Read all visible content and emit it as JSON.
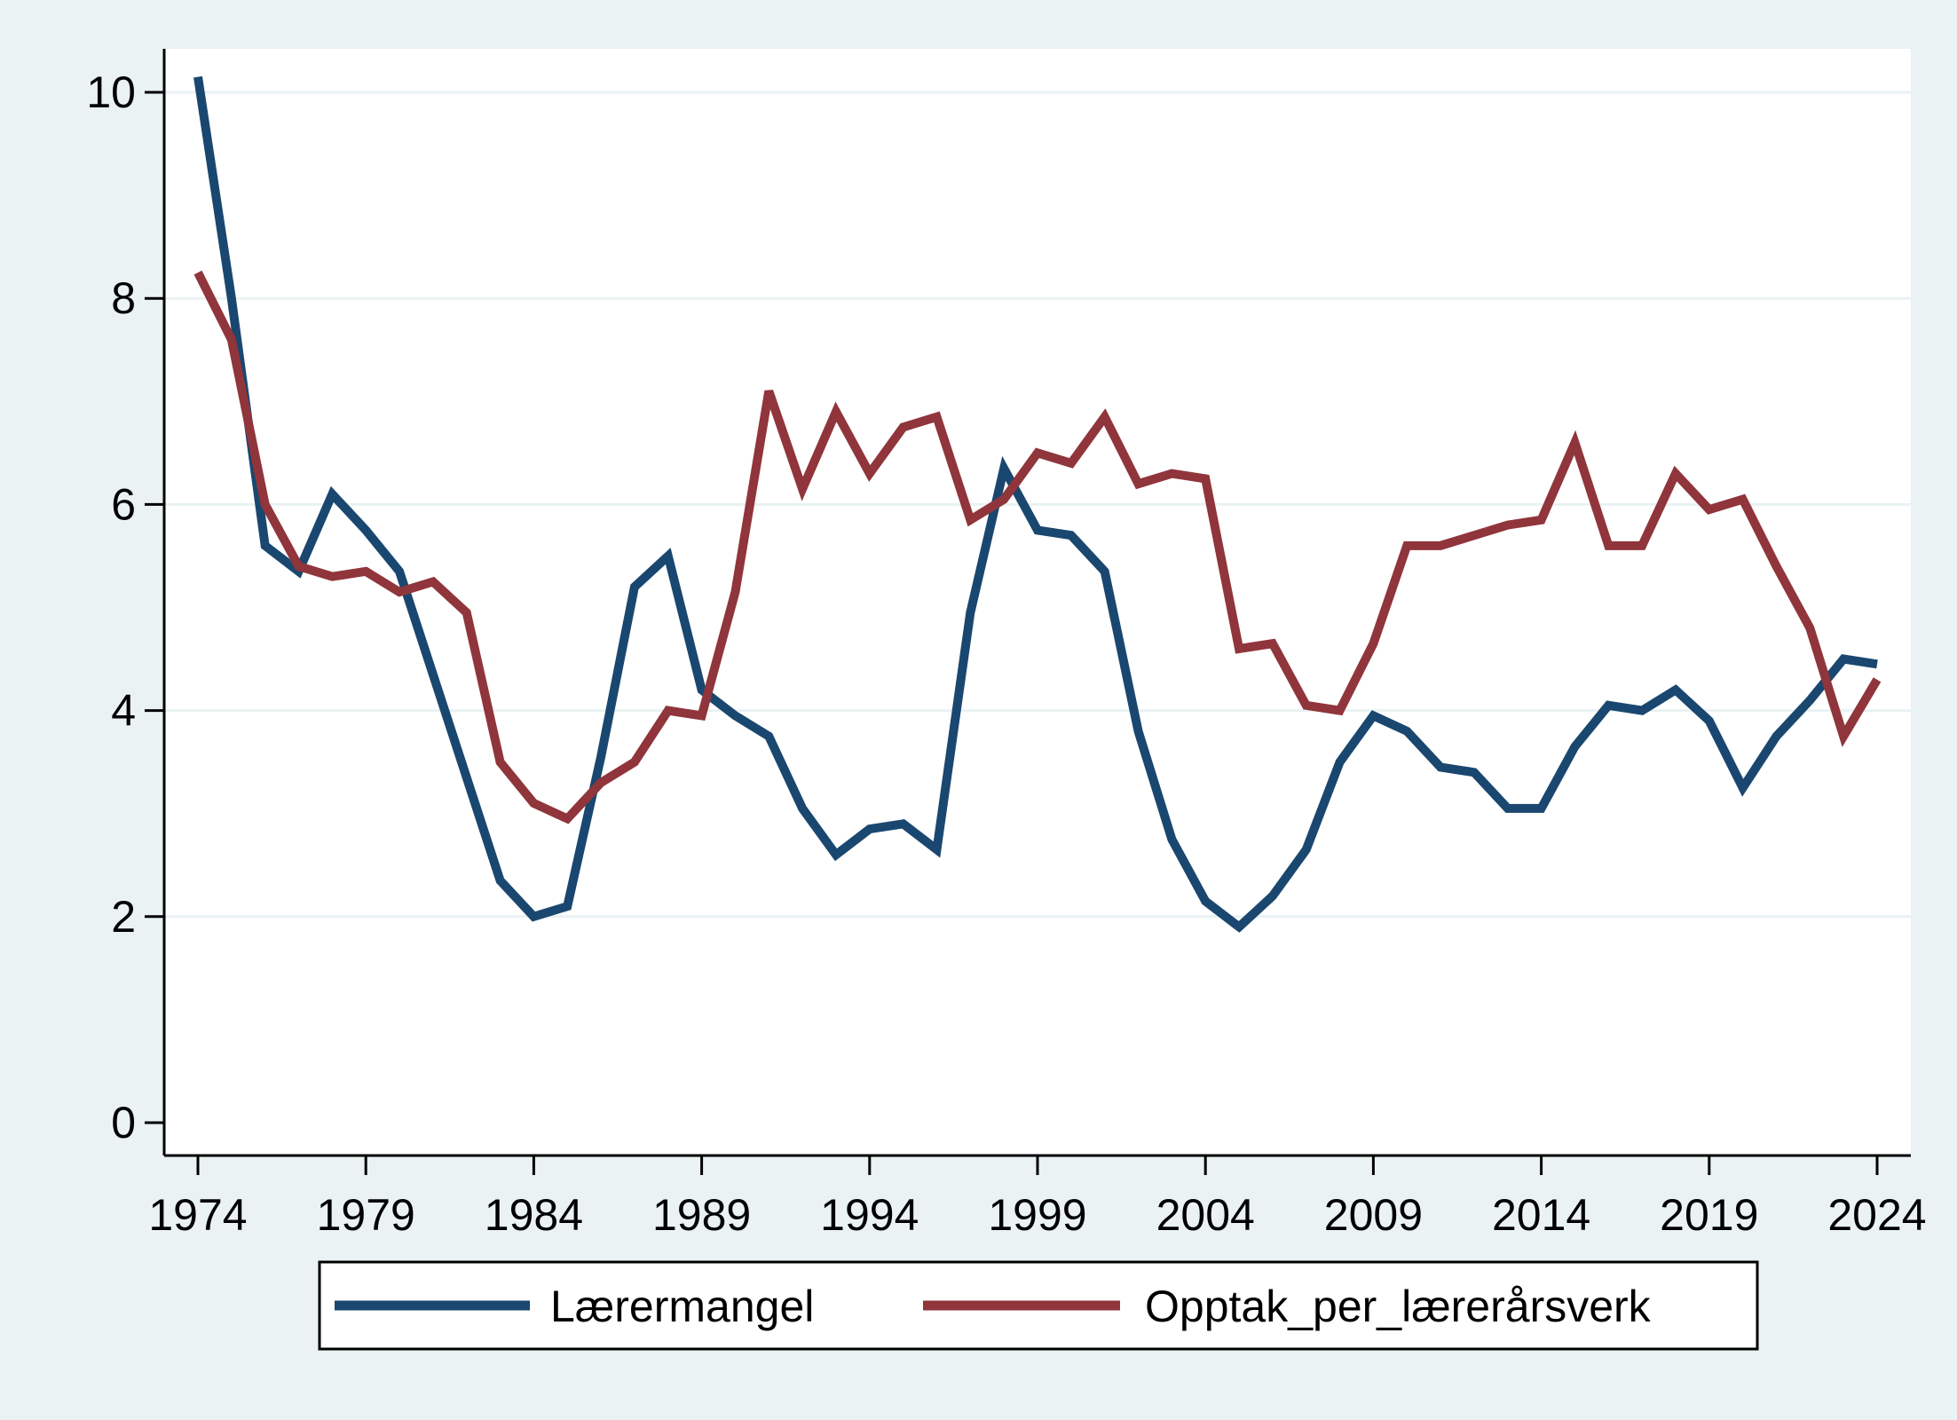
{
  "chart_data": {
    "type": "line",
    "title": "",
    "xlabel": "",
    "ylabel": "",
    "xlim": [
      1974,
      2024
    ],
    "ylim": [
      0,
      10
    ],
    "x_ticks": [
      1974,
      1979,
      1984,
      1989,
      1994,
      1999,
      2004,
      2009,
      2014,
      2019,
      2024
    ],
    "y_ticks": [
      0,
      2,
      4,
      6,
      8,
      10
    ],
    "x_tick_labels": [
      "1974",
      "1979",
      "1984",
      "1989",
      "1994",
      "1999",
      "2004",
      "2009",
      "2014",
      "2019",
      "2024"
    ],
    "y_tick_labels": [
      "0",
      "2",
      "4",
      "6",
      "8",
      "10"
    ],
    "grid": true,
    "legend_position": "bottom",
    "x": [
      1974,
      1975,
      1976,
      1977,
      1978,
      1979,
      1980,
      1981,
      1982,
      1983,
      1984,
      1985,
      1986,
      1987,
      1988,
      1989,
      1990,
      1991,
      1992,
      1993,
      1994,
      1995,
      1996,
      1997,
      1998,
      1999,
      2000,
      2001,
      2002,
      2003,
      2004,
      2005,
      2006,
      2007,
      2008,
      2009,
      2010,
      2011,
      2012,
      2013,
      2014,
      2015,
      2016,
      2017,
      2018,
      2019,
      2020,
      2021,
      2022,
      2023,
      2024
    ],
    "series": [
      {
        "name": "Lærermangel",
        "color": "#1a476f",
        "values": [
          10.15,
          8.0,
          5.6,
          5.35,
          6.1,
          5.75,
          5.35,
          4.35,
          3.35,
          2.35,
          2.0,
          2.1,
          3.55,
          5.2,
          5.5,
          4.2,
          3.95,
          3.75,
          3.05,
          2.6,
          2.85,
          2.9,
          2.65,
          4.95,
          6.35,
          5.75,
          5.7,
          5.35,
          3.8,
          2.75,
          2.15,
          1.9,
          2.2,
          2.65,
          3.5,
          3.95,
          3.8,
          3.45,
          3.4,
          3.05,
          3.05,
          3.65,
          4.05,
          4.0,
          4.2,
          3.9,
          3.25,
          3.75,
          4.1,
          4.5,
          4.45
        ]
      },
      {
        "name": "Opptak_per_lærerårsverk",
        "color": "#90353b",
        "values": [
          8.25,
          7.6,
          6.0,
          5.4,
          5.3,
          5.35,
          5.15,
          5.25,
          4.95,
          3.5,
          3.1,
          2.95,
          3.3,
          3.5,
          4.0,
          3.95,
          5.15,
          7.1,
          6.15,
          6.9,
          6.3,
          6.75,
          6.85,
          5.85,
          6.05,
          6.5,
          6.4,
          6.85,
          6.2,
          6.3,
          6.25,
          4.6,
          4.65,
          4.05,
          4.0,
          4.65,
          5.6,
          5.6,
          5.7,
          5.8,
          5.85,
          6.6,
          5.6,
          5.6,
          6.3,
          5.95,
          6.05,
          5.4,
          4.8,
          3.75,
          4.3
        ]
      }
    ]
  }
}
